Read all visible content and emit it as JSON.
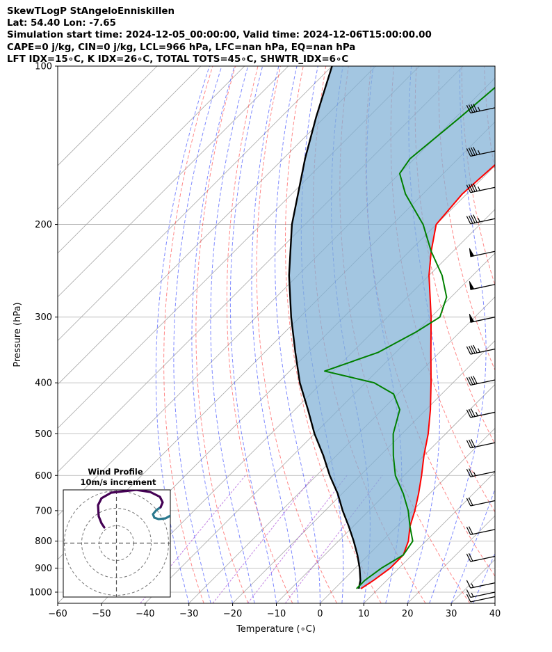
{
  "header": {
    "line1": "SkewTLogP StAngeloEnniskillen",
    "line2": "Lat: 54.40   Lon: -7.65",
    "line3": "Simulation start time: 2024-12-05_00:00:00, Valid time: 2024-12-06T15:00:00.00",
    "line4": "CAPE=0 j/kg, CIN=0 j/kg, LCL=966 hPa, LFC=nan hPa, EQ=nan hPa",
    "line5": "LFT IDX=15∘C, K IDX=26∘C, TOTAL TOTS=45∘C, SHWTR_IDX=6∘C"
  },
  "chart_data": {
    "type": "line",
    "title": "SkewTLogP StAngeloEnniskillen",
    "xlabel": "Temperature (∘C)",
    "ylabel": "Pressure (hPa)",
    "xlim": [
      -60,
      40
    ],
    "ylim": [
      1050,
      100
    ],
    "x_ticks": [
      "−60",
      "−50",
      "−40",
      "−30",
      "−20",
      "−10",
      "0",
      "10",
      "20",
      "30",
      "40"
    ],
    "y_ticks": [
      "100",
      "200",
      "300",
      "400",
      "500",
      "600",
      "700",
      "800",
      "900",
      "1000"
    ],
    "grid": true,
    "series": [
      {
        "role": "temperature",
        "color": "#ff0000",
        "p": [
          985,
          950,
          900,
          850,
          800,
          750,
          700,
          650,
          600,
          550,
          500,
          450,
          400,
          350,
          300,
          250,
          225,
          200,
          175,
          150,
          125,
          100
        ],
        "t": [
          6,
          7,
          8,
          8,
          6,
          3,
          0.5,
          -2.5,
          -6,
          -10,
          -14,
          -19,
          -25,
          -32,
          -40,
          -50,
          -55,
          -60,
          -61,
          -60,
          -59,
          -60
        ]
      },
      {
        "role": "dewpoint",
        "color": "#008000",
        "p": [
          985,
          950,
          900,
          850,
          800,
          750,
          700,
          650,
          600,
          550,
          500,
          450,
          420,
          400,
          380,
          350,
          320,
          300,
          275,
          250,
          225,
          200,
          175,
          160,
          150,
          125,
          100
        ],
        "td": [
          5,
          5,
          6,
          8,
          7,
          3,
          -1,
          -6,
          -12,
          -17,
          -22,
          -26,
          -31,
          -38,
          -52,
          -44,
          -40,
          -38,
          -41,
          -47,
          -55,
          -63,
          -74,
          -80,
          -81,
          -79,
          -77
        ]
      },
      {
        "role": "parcel",
        "color": "#000000",
        "p": [
          985,
          950,
          900,
          850,
          800,
          750,
          700,
          650,
          600,
          550,
          500,
          450,
          400,
          350,
          300,
          250,
          200,
          150,
          125,
          100
        ],
        "t": [
          5.5,
          4,
          1,
          -2.5,
          -6.5,
          -11,
          -16,
          -21,
          -27,
          -33,
          -40,
          -47,
          -55,
          -63,
          -72,
          -82,
          -93,
          -105,
          -112,
          -120
        ]
      }
    ],
    "wind_barbs": {
      "p": [
        120,
        145,
        170,
        195,
        225,
        260,
        300,
        345,
        395,
        455,
        520,
        590,
        670,
        760,
        855,
        960,
        1000,
        1020
      ],
      "knots": [
        45,
        45,
        45,
        45,
        50,
        50,
        50,
        45,
        40,
        35,
        30,
        25,
        20,
        20,
        20,
        15,
        15,
        10
      ]
    },
    "hodograph": {
      "title": "Wind Profile",
      "subtitle": "10m/s increment",
      "colors": [
        "#2a788e",
        "#440154"
      ]
    }
  }
}
